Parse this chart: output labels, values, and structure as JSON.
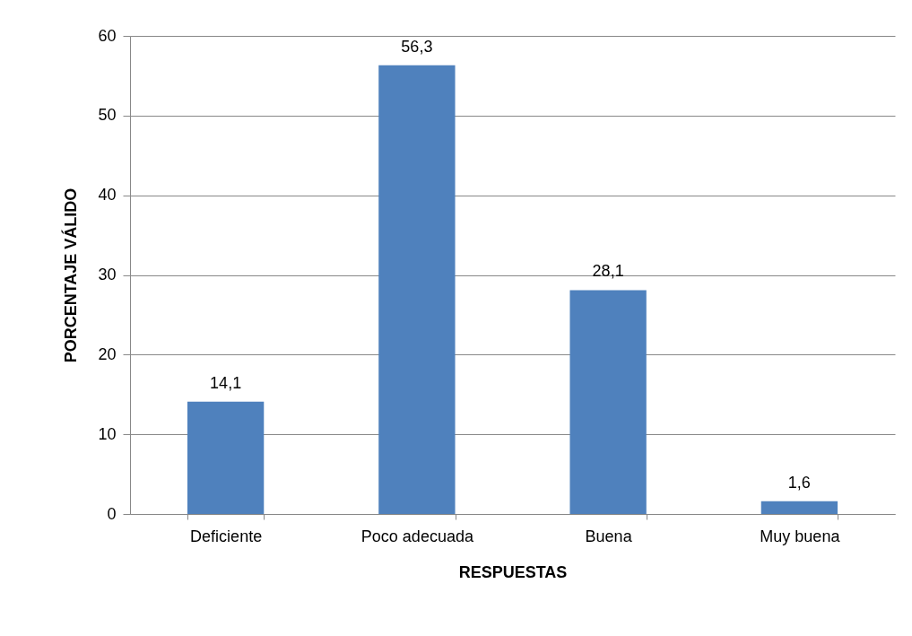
{
  "chart_data": {
    "type": "bar",
    "xlabel": "RESPUESTAS",
    "ylabel": "PORCENTAJE VÁLIDO",
    "categories": [
      "Deficiente",
      "Poco adecuada",
      "Buena",
      "Muy buena"
    ],
    "values": [
      14.1,
      56.3,
      28.1,
      1.6
    ],
    "value_labels": [
      "14,1",
      "56,3",
      "28,1",
      "1,6"
    ],
    "color": "#4f81bd",
    "ylim": [
      0,
      60
    ],
    "yticks": [
      0,
      10,
      20,
      30,
      40,
      50,
      60
    ],
    "grid": "y"
  }
}
